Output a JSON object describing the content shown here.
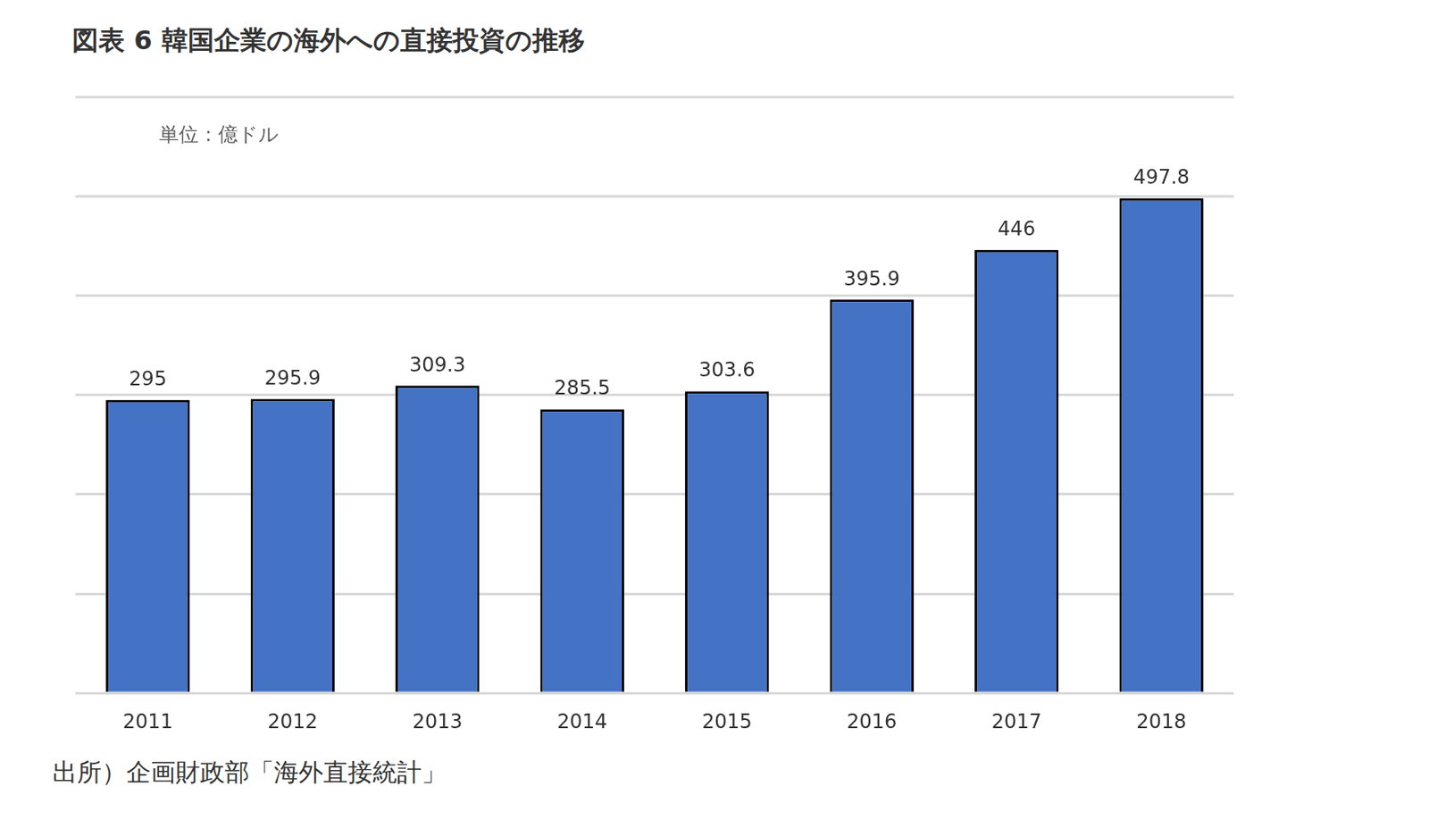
{
  "chart_data": {
    "type": "bar",
    "title": "図表 6 韓国企業の海外への直接投資の推移",
    "ylabel": "単位：億ドル",
    "source": "出所）企画財政部「海外直接統計」",
    "categories": [
      "2011",
      "2012",
      "2013",
      "2014",
      "2015",
      "2016",
      "2017",
      "2018"
    ],
    "values": [
      295,
      295.9,
      309.3,
      285.5,
      303.6,
      395.9,
      446,
      497.8
    ],
    "color": "#4472c4",
    "ylim": [
      0,
      600
    ],
    "yticks": [
      0,
      100,
      200,
      300,
      400,
      500,
      600
    ],
    "grid": true,
    "data_labels": true,
    "tick_labels": "x"
  }
}
